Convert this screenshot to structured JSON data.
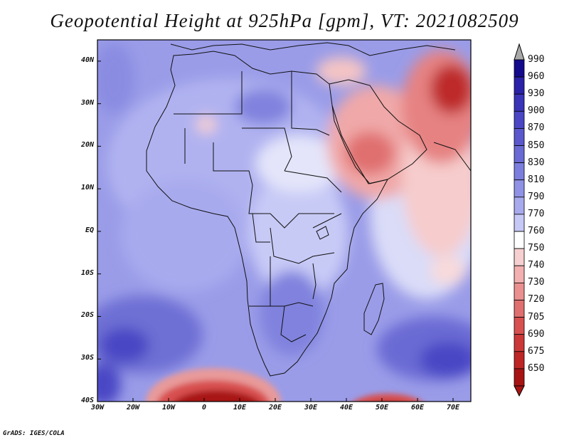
{
  "title": "Geopotential Height at 925hPa [gpm], VT: 2021082509",
  "credit": "GrADS: IGES/COLA",
  "map": {
    "region": "Africa and Arabian Peninsula",
    "variable": "Geopotential Height",
    "level": "925hPa",
    "units": "gpm",
    "valid_time": "2021082509",
    "lat_labels": [
      "40N",
      "30N",
      "20N",
      "10N",
      "EQ",
      "10S",
      "20S",
      "30S",
      "40S"
    ],
    "lon_labels": [
      "30W",
      "20W",
      "10W",
      "0",
      "10E",
      "20E",
      "30E",
      "40E",
      "50E",
      "60E",
      "70E"
    ],
    "lat_values": [
      40,
      30,
      20,
      10,
      0,
      -10,
      -20,
      -30,
      -40
    ],
    "lon_values": [
      -30,
      -20,
      -10,
      0,
      10,
      20,
      30,
      40,
      50,
      60,
      70
    ],
    "lat_range": [
      -40,
      45
    ],
    "lon_range": [
      -30,
      75
    ]
  },
  "colorbar": {
    "labels": [
      "990",
      "960",
      "930",
      "900",
      "870",
      "850",
      "830",
      "810",
      "790",
      "770",
      "760",
      "750",
      "740",
      "730",
      "720",
      "705",
      "690",
      "675",
      "650"
    ],
    "colors": [
      "#140a8c",
      "#2a22a8",
      "#3a34b8",
      "#4a46c4",
      "#5a58cc",
      "#6a6ad4",
      "#7c7ede",
      "#9092e6",
      "#a8aaee",
      "#c6c8f6",
      "#ffffff",
      "#f6d0d0",
      "#f2b0b0",
      "#ea9090",
      "#e07070",
      "#d85050",
      "#cc3838",
      "#be2626",
      "#a81414"
    ],
    "top_arrow_color": "#a9a9a9",
    "bottom_arrow_color": "#a81414"
  }
}
